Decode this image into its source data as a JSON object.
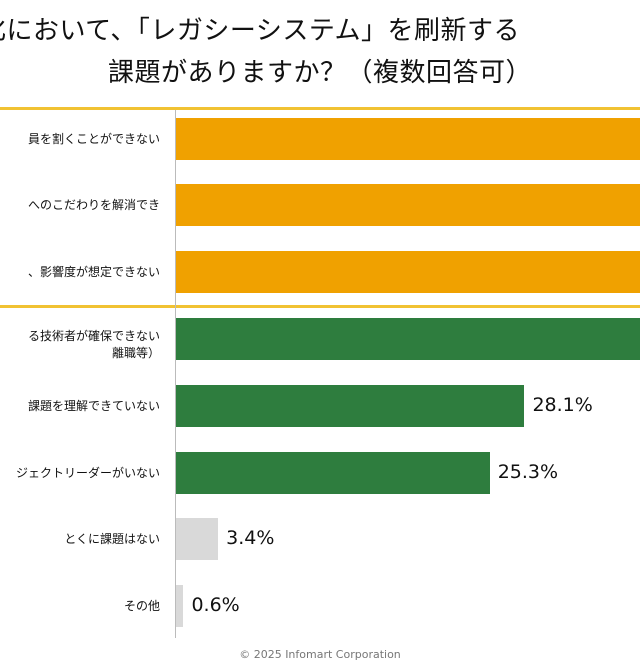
{
  "title": {
    "line1": "化において、「レガシーシステム」を刷新する",
    "line2": "課題がありますか？（複数回答可）"
  },
  "colors": {
    "group1": "#f0a100",
    "group2": "#2e7d3e",
    "other": "#d9d9d9",
    "rule": "#f1c232"
  },
  "chart_data": {
    "type": "bar",
    "orientation": "horizontal",
    "categories": [
      "員を割くことができない",
      "へのこだわりを解消でき",
      "、影響度が想定できない",
      "る技術者が確保できない|離職等）",
      "課題を理解できていない",
      "ジェクトリーダーがいない",
      "とくに課題はない",
      "その他"
    ],
    "values": [
      null,
      null,
      null,
      null,
      28.1,
      25.3,
      3.4,
      0.6
    ],
    "value_labels": [
      "",
      "",
      "",
      "",
      "28.1%",
      "25.3%",
      "3.4%",
      "0.6%"
    ],
    "groups": [
      "group1",
      "group1",
      "group1",
      "group2",
      "group2",
      "group2",
      "other",
      "other"
    ],
    "title": "化において、「レガシーシステム」を刷新する 課題がありますか？（複数回答可）"
  },
  "footer": "© 2025 Infomart Corporation"
}
